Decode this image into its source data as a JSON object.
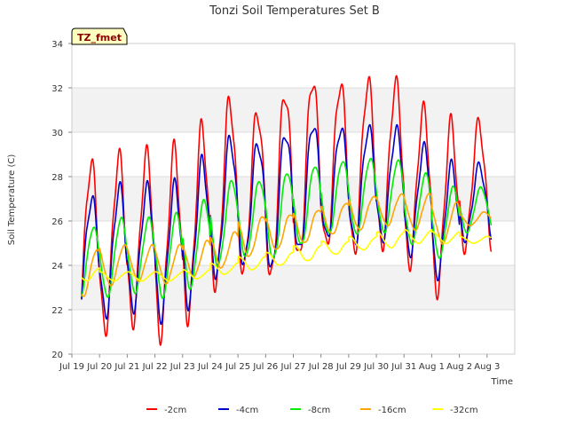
{
  "chart_data": {
    "type": "line",
    "title": "Tonzi Soil Temperatures Set B",
    "xlabel": "Time",
    "ylabel": "Soil Temperature (C)",
    "site_label": "TZ_fmet",
    "ylim": [
      20,
      34
    ],
    "yticks": [
      "20",
      "22",
      "24",
      "26",
      "28",
      "30",
      "32",
      "34"
    ],
    "xlim": [
      0,
      16
    ],
    "xticks": [
      "Jul 19",
      "Jul 20",
      "Jul 21",
      "Jul 22",
      "Jul 23",
      "Jul 24",
      "Jul 25",
      "Jul 26",
      "Jul 27",
      "Jul 28",
      "Jul 29",
      "Jul 30",
      "Jul 31",
      "Aug 1",
      "Aug 2",
      "Aug 3"
    ],
    "x_is_days_since": "Jul 19",
    "grid": true,
    "legend": "bottom",
    "series": [
      {
        "name": "-2cm",
        "color": "#ff0000",
        "daily_min": [
          21.2,
          21.1,
          21.5,
          20.9,
          21.7,
          23.1,
          23.7,
          23.4,
          24.2,
          24.8,
          24.6,
          24.9,
          24.1,
          22.9,
          24.8
        ],
        "daily_max": [
          28.6,
          28.9,
          29.0,
          29.2,
          30.2,
          31.4,
          30.9,
          31.8,
          32.4,
          32.2,
          32.3,
          32.2,
          31.0,
          30.4,
          30.4
        ]
      },
      {
        "name": "-4cm",
        "color": "#0000cc",
        "daily_min": [
          21.9,
          21.8,
          22.1,
          21.7,
          22.3,
          23.6,
          24.1,
          23.8,
          24.6,
          25.2,
          25.0,
          25.2,
          24.6,
          23.6,
          25.2
        ],
        "daily_max": [
          27.0,
          27.5,
          27.5,
          27.6,
          28.7,
          29.7,
          29.5,
          30.0,
          30.4,
          30.2,
          30.2,
          30.1,
          29.3,
          28.5,
          28.5
        ]
      },
      {
        "name": "-8cm",
        "color": "#00ee00",
        "daily_min": [
          22.5,
          22.6,
          22.8,
          22.6,
          23.0,
          24.0,
          24.4,
          24.3,
          24.9,
          25.4,
          25.4,
          25.5,
          25.0,
          24.4,
          25.5
        ],
        "daily_max": [
          25.7,
          26.1,
          26.1,
          26.3,
          26.9,
          27.8,
          27.8,
          28.2,
          28.5,
          28.7,
          28.8,
          28.7,
          28.1,
          27.5,
          27.5
        ]
      },
      {
        "name": "-16cm",
        "color": "#ffa500",
        "daily_min": [
          22.6,
          23.1,
          23.3,
          23.2,
          23.5,
          23.9,
          24.4,
          24.7,
          25.0,
          25.4,
          25.6,
          25.8,
          25.6,
          25.0,
          25.8
        ],
        "daily_max": [
          24.7,
          24.9,
          24.9,
          24.9,
          25.1,
          25.5,
          26.2,
          26.3,
          26.5,
          26.8,
          27.1,
          27.2,
          27.2,
          26.8,
          26.4
        ]
      },
      {
        "name": "-32cm",
        "color": "#ffff00",
        "daily_min": [
          23.3,
          23.3,
          23.3,
          23.3,
          23.4,
          23.6,
          23.8,
          24.0,
          24.2,
          24.5,
          24.7,
          24.8,
          25.0,
          25.0,
          25.0
        ],
        "daily_max": [
          23.9,
          23.7,
          23.7,
          23.7,
          23.8,
          24.1,
          24.4,
          24.6,
          24.9,
          25.1,
          25.3,
          25.5,
          25.6,
          25.5,
          25.3
        ]
      }
    ]
  }
}
